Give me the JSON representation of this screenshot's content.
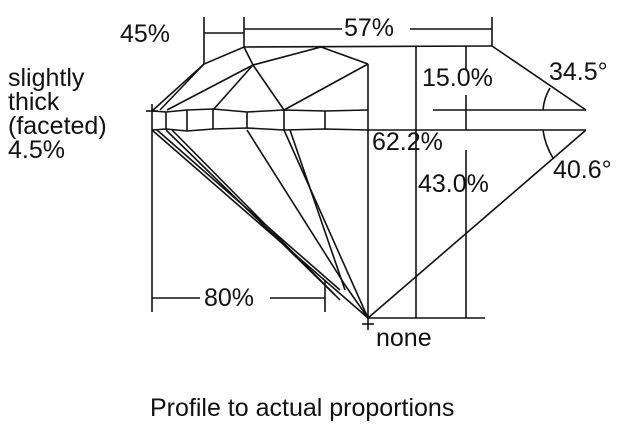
{
  "labels": {
    "crown_height_pct": "45%",
    "table_pct": "57%",
    "girdle_line1": "slightly",
    "girdle_line2": "thick",
    "girdle_line3": "(faceted)",
    "girdle_pct": "4.5%",
    "crown_depth": "15.0%",
    "crown_angle": "34.5°",
    "total_depth": "62.2%",
    "pavilion_depth": "43.0%",
    "pavilion_angle": "40.6°",
    "lower_half_pct": "80%",
    "culet": "none",
    "caption": "Profile to actual proportions"
  },
  "colors": {
    "line": "#111111",
    "background": "#ffffff"
  }
}
